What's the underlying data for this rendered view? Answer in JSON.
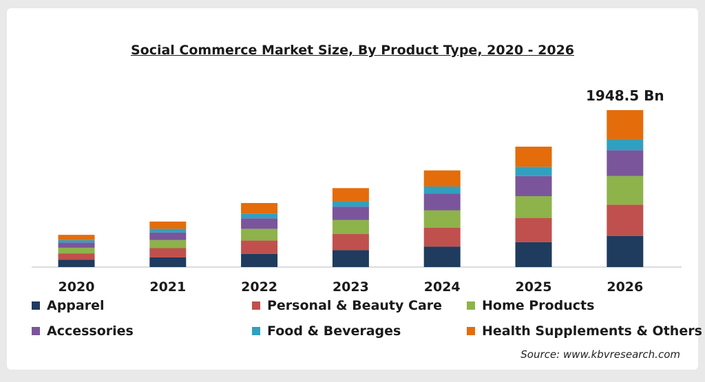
{
  "chart_data": {
    "type": "bar",
    "stacked": true,
    "title": "Social Commerce Market Size, By Product Type, 2020 - 2026",
    "categories": [
      "2020",
      "2021",
      "2022",
      "2023",
      "2024",
      "2025",
      "2026"
    ],
    "series": [
      {
        "name": "Apparel",
        "color": "#1f3b5e",
        "values": [
          90,
          120,
          165,
          210,
          255,
          310,
          385
        ]
      },
      {
        "name": "Personal & Beauty Care",
        "color": "#c0504d",
        "values": [
          80,
          115,
          165,
          200,
          235,
          300,
          390
        ]
      },
      {
        "name": "Home Products",
        "color": "#8db34a",
        "values": [
          70,
          100,
          145,
          175,
          215,
          270,
          355
        ]
      },
      {
        "name": "Accessories",
        "color": "#7a559b",
        "values": [
          65,
          95,
          130,
          165,
          205,
          250,
          320
        ]
      },
      {
        "name": "Food & Beverages",
        "color": "#31a0c0",
        "values": [
          30,
          45,
          60,
          70,
          90,
          115,
          140
        ]
      },
      {
        "name": "Health Supplements & Others",
        "color": "#e46c0a",
        "values": [
          65,
          90,
          130,
          160,
          200,
          250,
          358.5
        ]
      }
    ],
    "annotation": {
      "category": "2026",
      "text": "1948.5 Bn"
    },
    "grid": false,
    "legend_position": "bottom"
  },
  "source": "Source: www.kbvresearch.com"
}
